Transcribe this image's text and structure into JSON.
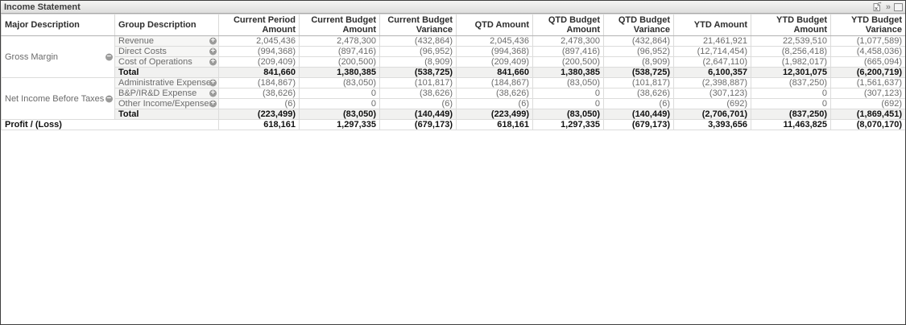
{
  "window": {
    "title": "Income Statement"
  },
  "icons": {
    "send_to_excel": "send-to-excel-icon",
    "fast_forward_glyph": "»",
    "maximize": "maximize-icon",
    "expand_glyph": "+",
    "collapse_glyph": "−"
  },
  "colors": {
    "window_border": "#3f3f3f",
    "caption_bg": "#e9e9e8",
    "grid_line": "#dcdcdb",
    "group_cell_bg": "#f6f6f5",
    "total_row_bg": "#f1f1f0",
    "body_text": "#6b6b6b",
    "bold_text": "#111111",
    "icon_circle": "#9b9b9a"
  },
  "table": {
    "columns": [
      {
        "label": "Major Description",
        "align": "left"
      },
      {
        "label": "Group Description",
        "align": "left"
      },
      {
        "label": "Current Period Amount",
        "align": "right"
      },
      {
        "label": "Current Budget Amount",
        "align": "right"
      },
      {
        "label": "Current Budget Variance",
        "align": "right"
      },
      {
        "label": "QTD Amount",
        "align": "right"
      },
      {
        "label": "QTD Budget Amount",
        "align": "right"
      },
      {
        "label": "QTD Budget Variance",
        "align": "right"
      },
      {
        "label": "YTD Amount",
        "align": "right"
      },
      {
        "label": "YTD Budget Amount",
        "align": "right"
      },
      {
        "label": "YTD Budget Variance",
        "align": "right"
      }
    ],
    "sections": [
      {
        "major": "Gross Margin",
        "rows": [
          {
            "group": "Revenue",
            "values": [
              "2,045,436",
              "2,478,300",
              "(432,864)",
              "2,045,436",
              "2,478,300",
              "(432,864)",
              "21,461,921",
              "22,539,510",
              "(1,077,589)"
            ]
          },
          {
            "group": "Direct Costs",
            "values": [
              "(994,368)",
              "(897,416)",
              "(96,952)",
              "(994,368)",
              "(897,416)",
              "(96,952)",
              "(12,714,454)",
              "(8,256,418)",
              "(4,458,036)"
            ]
          },
          {
            "group": "Cost of Operations",
            "values": [
              "(209,409)",
              "(200,500)",
              "(8,909)",
              "(209,409)",
              "(200,500)",
              "(8,909)",
              "(2,647,110)",
              "(1,982,017)",
              "(665,094)"
            ]
          }
        ],
        "total": {
          "label": "Total",
          "values": [
            "841,660",
            "1,380,385",
            "(538,725)",
            "841,660",
            "1,380,385",
            "(538,725)",
            "6,100,357",
            "12,301,075",
            "(6,200,719)"
          ]
        }
      },
      {
        "major": "Net Income Before Taxes",
        "rows": [
          {
            "group": "Administrative Expense",
            "values": [
              "(184,867)",
              "(83,050)",
              "(101,817)",
              "(184,867)",
              "(83,050)",
              "(101,817)",
              "(2,398,887)",
              "(837,250)",
              "(1,561,637)"
            ]
          },
          {
            "group": "B&P/IR&D Expense",
            "values": [
              "(38,626)",
              "0",
              "(38,626)",
              "(38,626)",
              "0",
              "(38,626)",
              "(307,123)",
              "0",
              "(307,123)"
            ]
          },
          {
            "group": "Other Income/Expenses",
            "values": [
              "(6)",
              "0",
              "(6)",
              "(6)",
              "0",
              "(6)",
              "(692)",
              "0",
              "(692)"
            ]
          }
        ],
        "total": {
          "label": "Total",
          "values": [
            "(223,499)",
            "(83,050)",
            "(140,449)",
            "(223,499)",
            "(83,050)",
            "(140,449)",
            "(2,706,701)",
            "(837,250)",
            "(1,869,451)"
          ]
        }
      }
    ],
    "grand_total": {
      "label": "Profit / (Loss)",
      "values": [
        "618,161",
        "1,297,335",
        "(679,173)",
        "618,161",
        "1,297,335",
        "(679,173)",
        "3,393,656",
        "11,463,825",
        "(8,070,170)"
      ]
    }
  }
}
